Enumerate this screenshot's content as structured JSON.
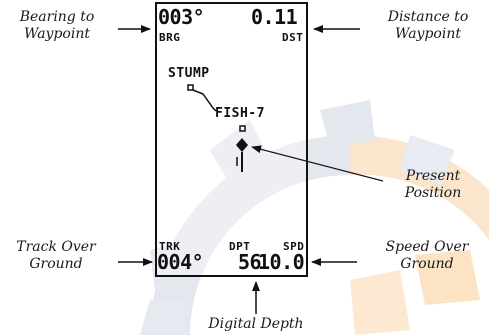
{
  "callouts": {
    "bearing": [
      "Bearing to",
      "Waypoint"
    ],
    "distance": [
      "Distance to",
      "Waypoint"
    ],
    "present": [
      "Present",
      "Position"
    ],
    "track": [
      "Track Over",
      "Ground"
    ],
    "speed": [
      "Speed Over",
      "Ground"
    ],
    "depth": [
      "Digital Depth"
    ]
  },
  "screen": {
    "bearing_value": "003°",
    "bearing_label": "BRG",
    "distance_value": "0.11",
    "distance_label": "DST",
    "waypoint_1": "STUMP",
    "waypoint_2": "FISH-7",
    "track_label": "TRK",
    "track_value": "004°",
    "depth_label": "DPT",
    "depth_value": "56",
    "speed_label": "SPD",
    "speed_value": "10.0"
  },
  "colors": {
    "watermark_gray": "#dfe3ea",
    "watermark_orange": "#fbe3c4",
    "screen_border": "#111111",
    "ink": "#1a1a1a"
  }
}
